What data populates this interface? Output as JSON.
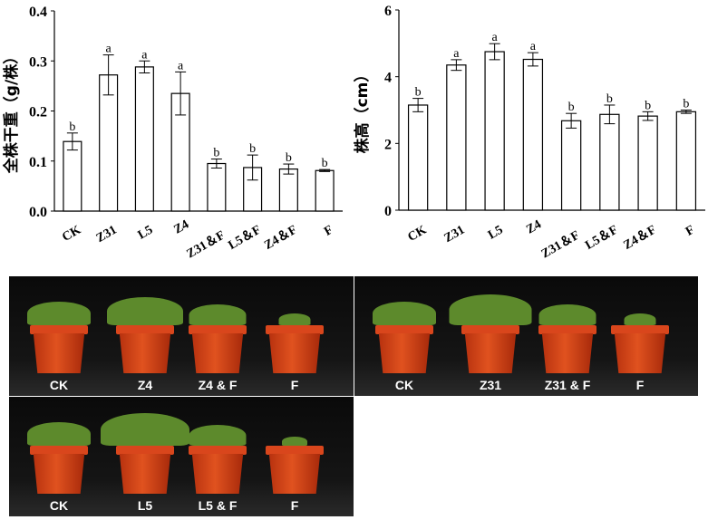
{
  "chart_data": [
    {
      "type": "bar",
      "ylabel": "全株干重（g/株）",
      "ylim": [
        0,
        0.4
      ],
      "yticks": [
        "0.0",
        "0.1",
        "0.2",
        "0.3",
        "0.4"
      ],
      "categories": [
        "CK",
        "Z31",
        "L5",
        "Z4",
        "Z31＆F",
        "L5＆F",
        "Z4＆F",
        "F"
      ],
      "values": [
        0.139,
        0.272,
        0.288,
        0.235,
        0.095,
        0.087,
        0.084,
        0.081
      ],
      "errors": [
        0.017,
        0.04,
        0.012,
        0.043,
        0.009,
        0.025,
        0.01,
        0.002
      ],
      "letters": [
        "b",
        "a",
        "a",
        "a",
        "b",
        "b",
        "b",
        "b"
      ]
    },
    {
      "type": "bar",
      "ylabel": "株高（cm）",
      "ylim": [
        0,
        6
      ],
      "yticks": [
        "0",
        "2",
        "4",
        "6"
      ],
      "categories": [
        "CK",
        "Z31",
        "L5",
        "Z4",
        "Z31＆F",
        "L5＆F",
        "Z4＆F",
        "F"
      ],
      "values": [
        3.15,
        4.35,
        4.75,
        4.52,
        2.68,
        2.87,
        2.82,
        2.95
      ],
      "errors": [
        0.2,
        0.16,
        0.24,
        0.2,
        0.22,
        0.28,
        0.13,
        0.05
      ],
      "letters": [
        "b",
        "a",
        "a",
        "a",
        "b",
        "b",
        "b",
        "b"
      ]
    }
  ],
  "photos": [
    {
      "labels": [
        "CK",
        "Z4",
        "Z4 & F",
        "F"
      ]
    },
    {
      "labels": [
        "CK",
        "Z31",
        "Z31 & F",
        "F"
      ]
    },
    {
      "labels": [
        "CK",
        "L5",
        "L5 & F",
        "F"
      ]
    }
  ],
  "colors": {
    "pot": "#d9461c",
    "leaf": "#5d8a2c",
    "background": "#0a0a0a"
  }
}
